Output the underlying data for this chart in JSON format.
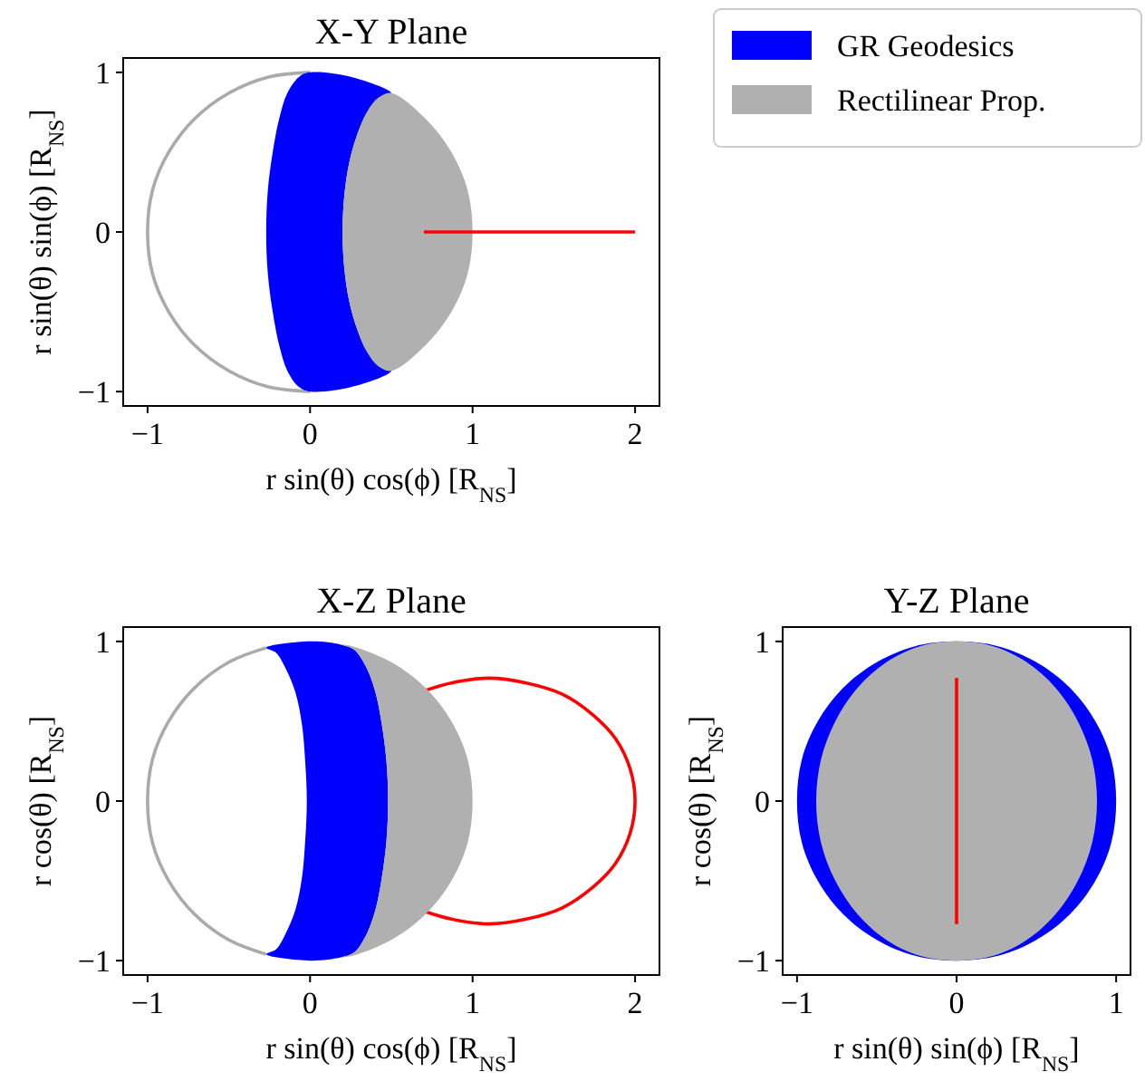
{
  "chart_data": [
    {
      "type": "line",
      "title": "X-Y Plane",
      "xlabel": "r sin(θ) cos(ϕ) [R$_{NS}$]",
      "ylabel": "r sin(θ) sin(ϕ) [R$_{NS}$]",
      "xlim": [
        -1.15,
        2.15
      ],
      "ylim": [
        -1.09,
        1.09
      ],
      "xticks": [
        -1,
        0,
        1,
        2
      ],
      "yticks": [
        -1,
        0,
        1
      ],
      "legend": "right",
      "series": [
        {
          "color": "#aaaaaa",
          "x": [
            0,
            -0.26,
            -0.5,
            -0.71,
            -0.87,
            -0.97,
            -1,
            -0.97,
            -0.87,
            -0.71,
            -0.5,
            -0.26,
            0
          ],
          "values": [
            1,
            0.97,
            0.87,
            0.71,
            0.5,
            0.26,
            0,
            -0.26,
            -0.5,
            -0.71,
            -0.87,
            -0.97,
            -1
          ]
        },
        {
          "type": "area",
          "name": "GR Geodesics",
          "color": "#0000ff",
          "x": [
            0,
            0.26,
            0.5,
            0.42,
            0.35,
            0.29,
            0.24,
            0.21,
            0.2,
            0.21,
            0.24,
            0.29,
            0.35,
            0.42,
            0.5,
            0.26,
            0,
            -0.07,
            -0.14,
            -0.19,
            -0.23,
            -0.26,
            -0.27,
            -0.26,
            -0.23,
            -0.19,
            -0.14,
            -0.07
          ],
          "values": [
            1,
            0.97,
            0.87,
            0.84,
            0.75,
            0.61,
            0.43,
            0.22,
            0,
            -0.22,
            -0.43,
            -0.61,
            -0.75,
            -0.84,
            -0.87,
            -0.97,
            -1,
            -0.97,
            -0.87,
            -0.71,
            -0.5,
            -0.26,
            0,
            0.26,
            0.5,
            0.71,
            0.87,
            0.97
          ]
        },
        {
          "type": "area",
          "name": "Rectilinear Prop.",
          "color": "#b0b0b0",
          "x": [
            0.5,
            0.42,
            0.35,
            0.29,
            0.24,
            0.21,
            0.2,
            0.21,
            0.24,
            0.29,
            0.35,
            0.42,
            0.5,
            0.71,
            0.87,
            0.97,
            1,
            0.97,
            0.87,
            0.71
          ],
          "values": [
            0.87,
            0.84,
            0.75,
            0.61,
            0.43,
            0.22,
            0,
            -0.22,
            -0.43,
            -0.61,
            -0.75,
            -0.84,
            -0.87,
            -0.71,
            -0.5,
            -0.26,
            0,
            0.26,
            0.5,
            0.71
          ]
        },
        {
          "color": "#ff0000",
          "x": [
            0.7,
            2
          ],
          "values": [
            0,
            0
          ]
        }
      ]
    },
    {
      "type": "line",
      "title": "X-Z Plane",
      "xlabel": "r sin(θ) cos(ϕ) [R$_{NS}$]",
      "ylabel": "r cos(θ) [R$_{NS}$]",
      "xlim": [
        -1.15,
        2.15
      ],
      "ylim": [
        -1.09,
        1.09
      ],
      "xticks": [
        -1,
        0,
        1,
        2
      ],
      "yticks": [
        -1,
        0,
        1
      ],
      "series": [
        {
          "color": "#aaaaaa",
          "x": [
            -0.27,
            -0.5,
            -0.71,
            -0.87,
            -0.97,
            -1,
            -0.97,
            -0.87,
            -0.71,
            -0.5,
            -0.27
          ],
          "values": [
            0.96,
            0.87,
            0.71,
            0.5,
            0.26,
            0,
            -0.26,
            -0.5,
            -0.71,
            -0.87,
            -0.96
          ]
        },
        {
          "color": "#ff0000",
          "x": [
            0.7,
            0.87,
            1.1,
            1.33,
            1.55,
            1.74,
            1.88,
            1.97,
            2,
            1.97,
            1.88,
            1.74,
            1.55,
            1.33,
            1.1,
            0.87,
            0.7
          ],
          "values": [
            0.69,
            0.74,
            0.77,
            0.74,
            0.67,
            0.54,
            0.39,
            0.2,
            0,
            -0.2,
            -0.39,
            -0.54,
            -0.67,
            -0.74,
            -0.77,
            -0.74,
            -0.69
          ]
        },
        {
          "type": "area",
          "color": "#0000ff",
          "x": [
            -0.27,
            0,
            0.19,
            0.27,
            0.34,
            0.4,
            0.44,
            0.47,
            0.48,
            0.47,
            0.44,
            0.4,
            0.34,
            0.27,
            0.19,
            0,
            -0.27,
            -0.21,
            -0.15,
            -0.09,
            -0.05,
            -0.03,
            -0.02,
            -0.03,
            -0.05,
            -0.09,
            -0.15,
            -0.21
          ],
          "values": [
            0.96,
            1,
            0.98,
            0.95,
            0.85,
            0.69,
            0.49,
            0.25,
            0,
            -0.25,
            -0.49,
            -0.69,
            -0.85,
            -0.95,
            -0.98,
            -1,
            -0.96,
            -0.93,
            -0.83,
            -0.68,
            -0.48,
            -0.25,
            0,
            0.25,
            0.48,
            0.68,
            0.83,
            0.93
          ]
        },
        {
          "type": "area",
          "color": "#b0b0b0",
          "x": [
            0.19,
            0.27,
            0.34,
            0.4,
            0.44,
            0.47,
            0.48,
            0.47,
            0.44,
            0.4,
            0.34,
            0.27,
            0.19,
            0.26,
            0.5,
            0.71,
            0.87,
            0.97,
            1,
            0.97,
            0.87,
            0.71,
            0.5,
            0.26
          ],
          "values": [
            0.98,
            0.95,
            0.85,
            0.69,
            0.49,
            0.25,
            0,
            -0.25,
            -0.49,
            -0.69,
            -0.85,
            -0.95,
            -0.98,
            -0.97,
            -0.87,
            -0.71,
            -0.5,
            -0.26,
            0,
            0.26,
            0.5,
            0.71,
            0.87,
            0.97
          ]
        }
      ]
    },
    {
      "type": "line",
      "title": "Y-Z Plane",
      "xlabel": "r sin(θ) sin(ϕ) [R$_{NS}$]",
      "ylabel": "r cos(θ) [R$_{NS}$]",
      "xlim": [
        -1.09,
        1.09
      ],
      "ylim": [
        -1.09,
        1.09
      ],
      "xticks": [
        -1,
        0,
        1
      ],
      "yticks": [
        -1,
        0,
        1
      ],
      "series": [
        {
          "type": "area",
          "color": "#0000ff",
          "x": [
            0,
            -0.26,
            -0.5,
            -0.71,
            -0.87,
            -0.97,
            -1,
            -0.97,
            -0.87,
            -0.71,
            -0.5,
            -0.26,
            0,
            0.26,
            0.5,
            0.71,
            0.87,
            0.97,
            1,
            0.97,
            0.87,
            0.71,
            0.5,
            0.26
          ],
          "values": [
            1,
            0.97,
            0.87,
            0.71,
            0.5,
            0.26,
            0,
            -0.26,
            -0.5,
            -0.71,
            -0.87,
            -0.97,
            -1,
            -0.97,
            -0.87,
            -0.71,
            -0.5,
            -0.26,
            0,
            0.26,
            0.5,
            0.71,
            0.87,
            0.97
          ]
        },
        {
          "type": "area",
          "color": "#b0b0b0",
          "x": [
            0,
            -0.23,
            -0.44,
            -0.62,
            -0.76,
            -0.85,
            -0.88,
            -0.85,
            -0.76,
            -0.62,
            -0.44,
            -0.23,
            0,
            0.23,
            0.44,
            0.62,
            0.76,
            0.85,
            0.88,
            0.85,
            0.76,
            0.62,
            0.44,
            0.23
          ],
          "values": [
            1,
            0.97,
            0.87,
            0.71,
            0.5,
            0.26,
            0,
            -0.26,
            -0.5,
            -0.71,
            -0.87,
            -0.97,
            -1,
            -0.97,
            -0.87,
            -0.71,
            -0.5,
            -0.26,
            0,
            0.26,
            0.5,
            0.71,
            0.87,
            0.97
          ]
        },
        {
          "color": "#ff0000",
          "x": [
            0,
            0
          ],
          "values": [
            0.77,
            -0.77
          ]
        }
      ]
    }
  ]
}
